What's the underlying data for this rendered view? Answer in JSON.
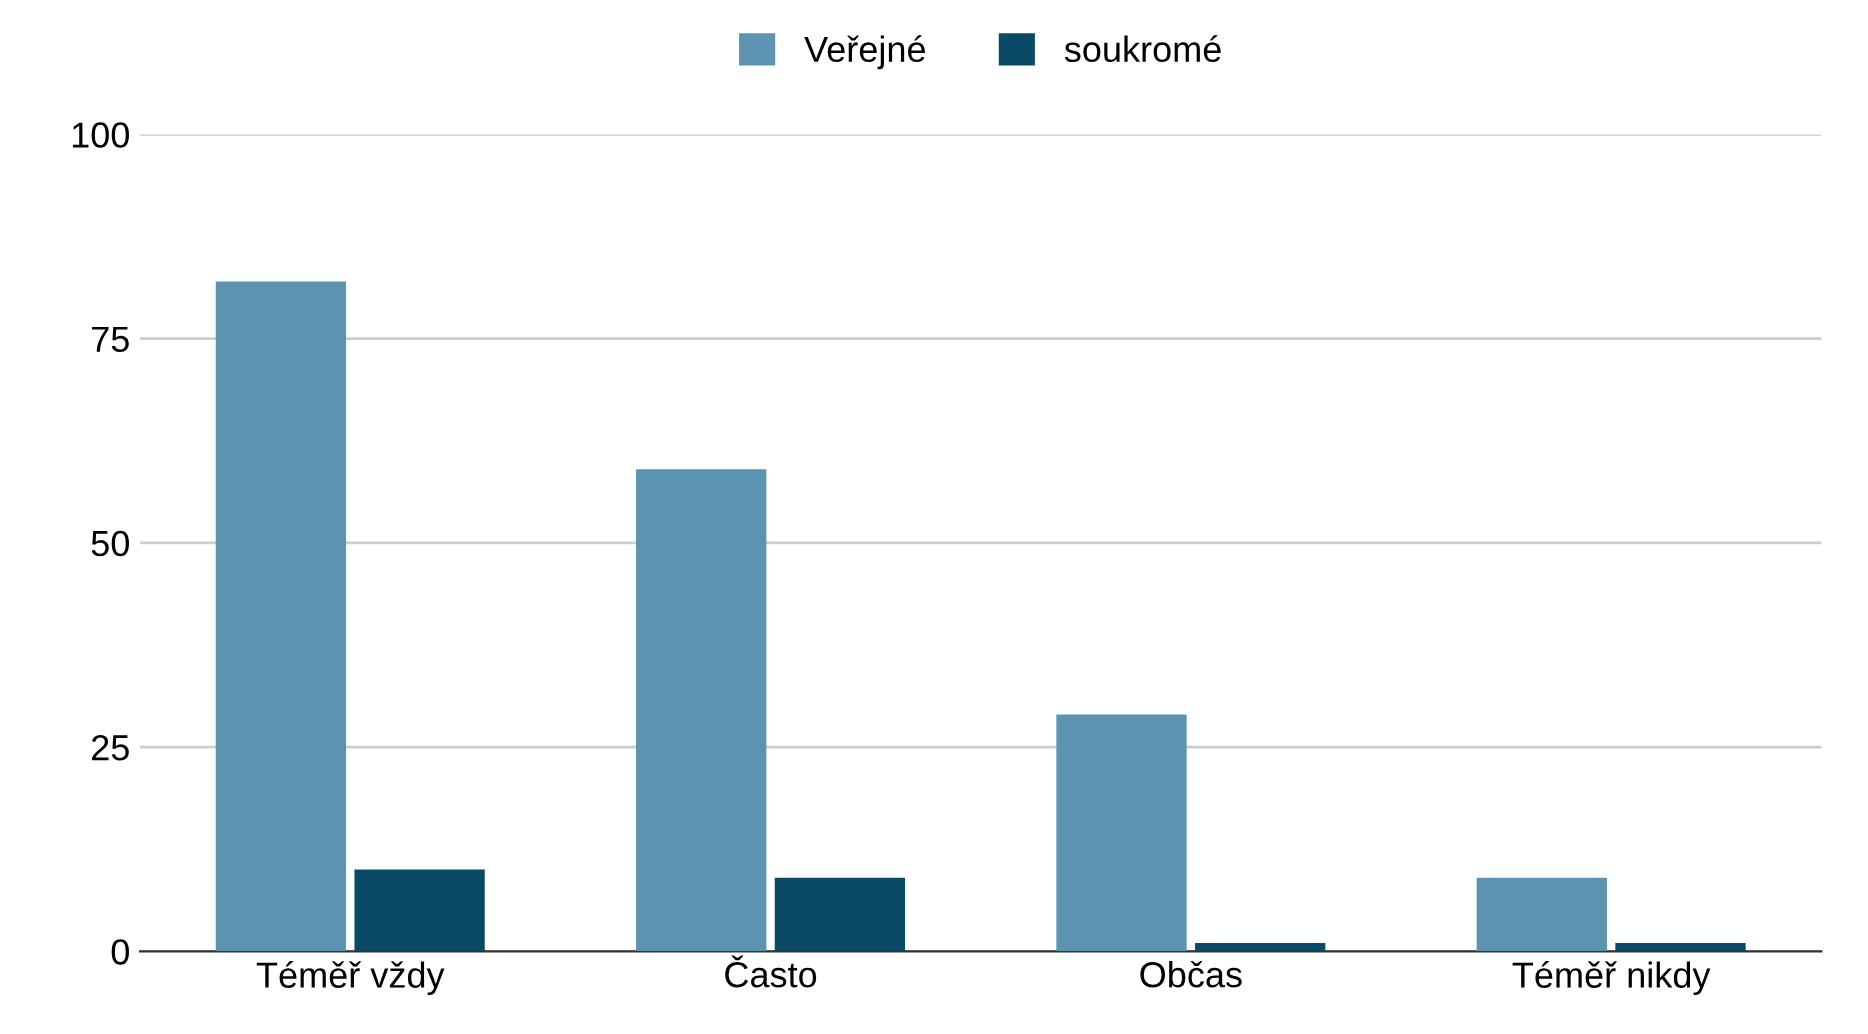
{
  "chart_data": {
    "type": "bar",
    "categories": [
      "Téměř vždy",
      "Často",
      "Občas",
      "Téměř nikdy"
    ],
    "series": [
      {
        "name": "Veřejné",
        "color": "#5b93b0",
        "values": [
          82,
          59,
          29,
          9
        ]
      },
      {
        "name": "soukromé",
        "color": "#0b4a66",
        "values": [
          10,
          9,
          1,
          1
        ]
      }
    ],
    "ylim": [
      0,
      100
    ],
    "yticks": [
      0,
      25,
      50,
      75,
      100
    ],
    "grid": "y",
    "legend": "top"
  }
}
